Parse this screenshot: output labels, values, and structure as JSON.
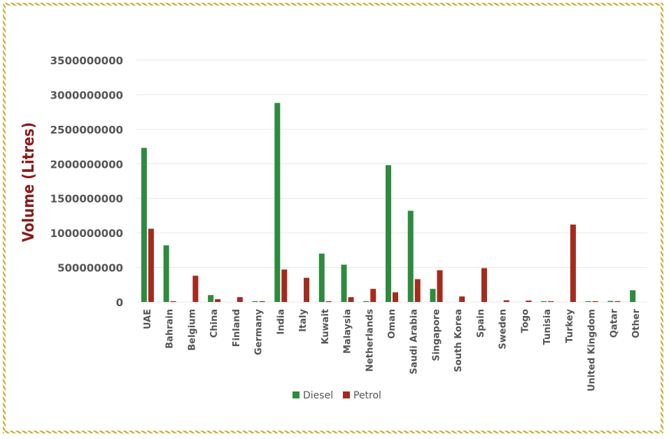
{
  "chart_data": {
    "type": "bar",
    "ylabel": "Volume (Litres)",
    "xlabel": "",
    "title": "",
    "ylim": [
      0,
      3500000000
    ],
    "yticks": [
      "0",
      "500000000",
      "1000000000",
      "1500000000",
      "2000000000",
      "2500000000",
      "3000000000",
      "3500000000"
    ],
    "grid": true,
    "legend_position": "bottom",
    "categories": [
      "UAE",
      "Bahrain",
      "Belgium",
      "China",
      "Finland",
      "Germany",
      "India",
      "Italy",
      "Kuwait",
      "Malaysia",
      "Netherlands",
      "Oman",
      "Saudi Arabia",
      "Singapore",
      "South Korea",
      "Spain",
      "Sweden",
      "Togo",
      "Tunisia",
      "Turkey",
      "United Kingdom",
      "Qatar",
      "Other"
    ],
    "series": [
      {
        "name": "Diesel",
        "color": "#2e8b3e",
        "values": [
          2230000000,
          820000000,
          0,
          100000000,
          0,
          5000000,
          2880000000,
          0,
          700000000,
          540000000,
          5000000,
          1980000000,
          1320000000,
          190000000,
          0,
          0,
          0,
          0,
          10000000,
          0,
          5000000,
          15000000,
          170000000
        ]
      },
      {
        "name": "Petrol",
        "color": "#a52a1e",
        "values": [
          1060000000,
          10000000,
          380000000,
          40000000,
          70000000,
          5000000,
          470000000,
          350000000,
          10000000,
          70000000,
          190000000,
          140000000,
          330000000,
          460000000,
          80000000,
          490000000,
          25000000,
          20000000,
          10000000,
          1120000000,
          10000000,
          5000000,
          0
        ]
      }
    ]
  }
}
